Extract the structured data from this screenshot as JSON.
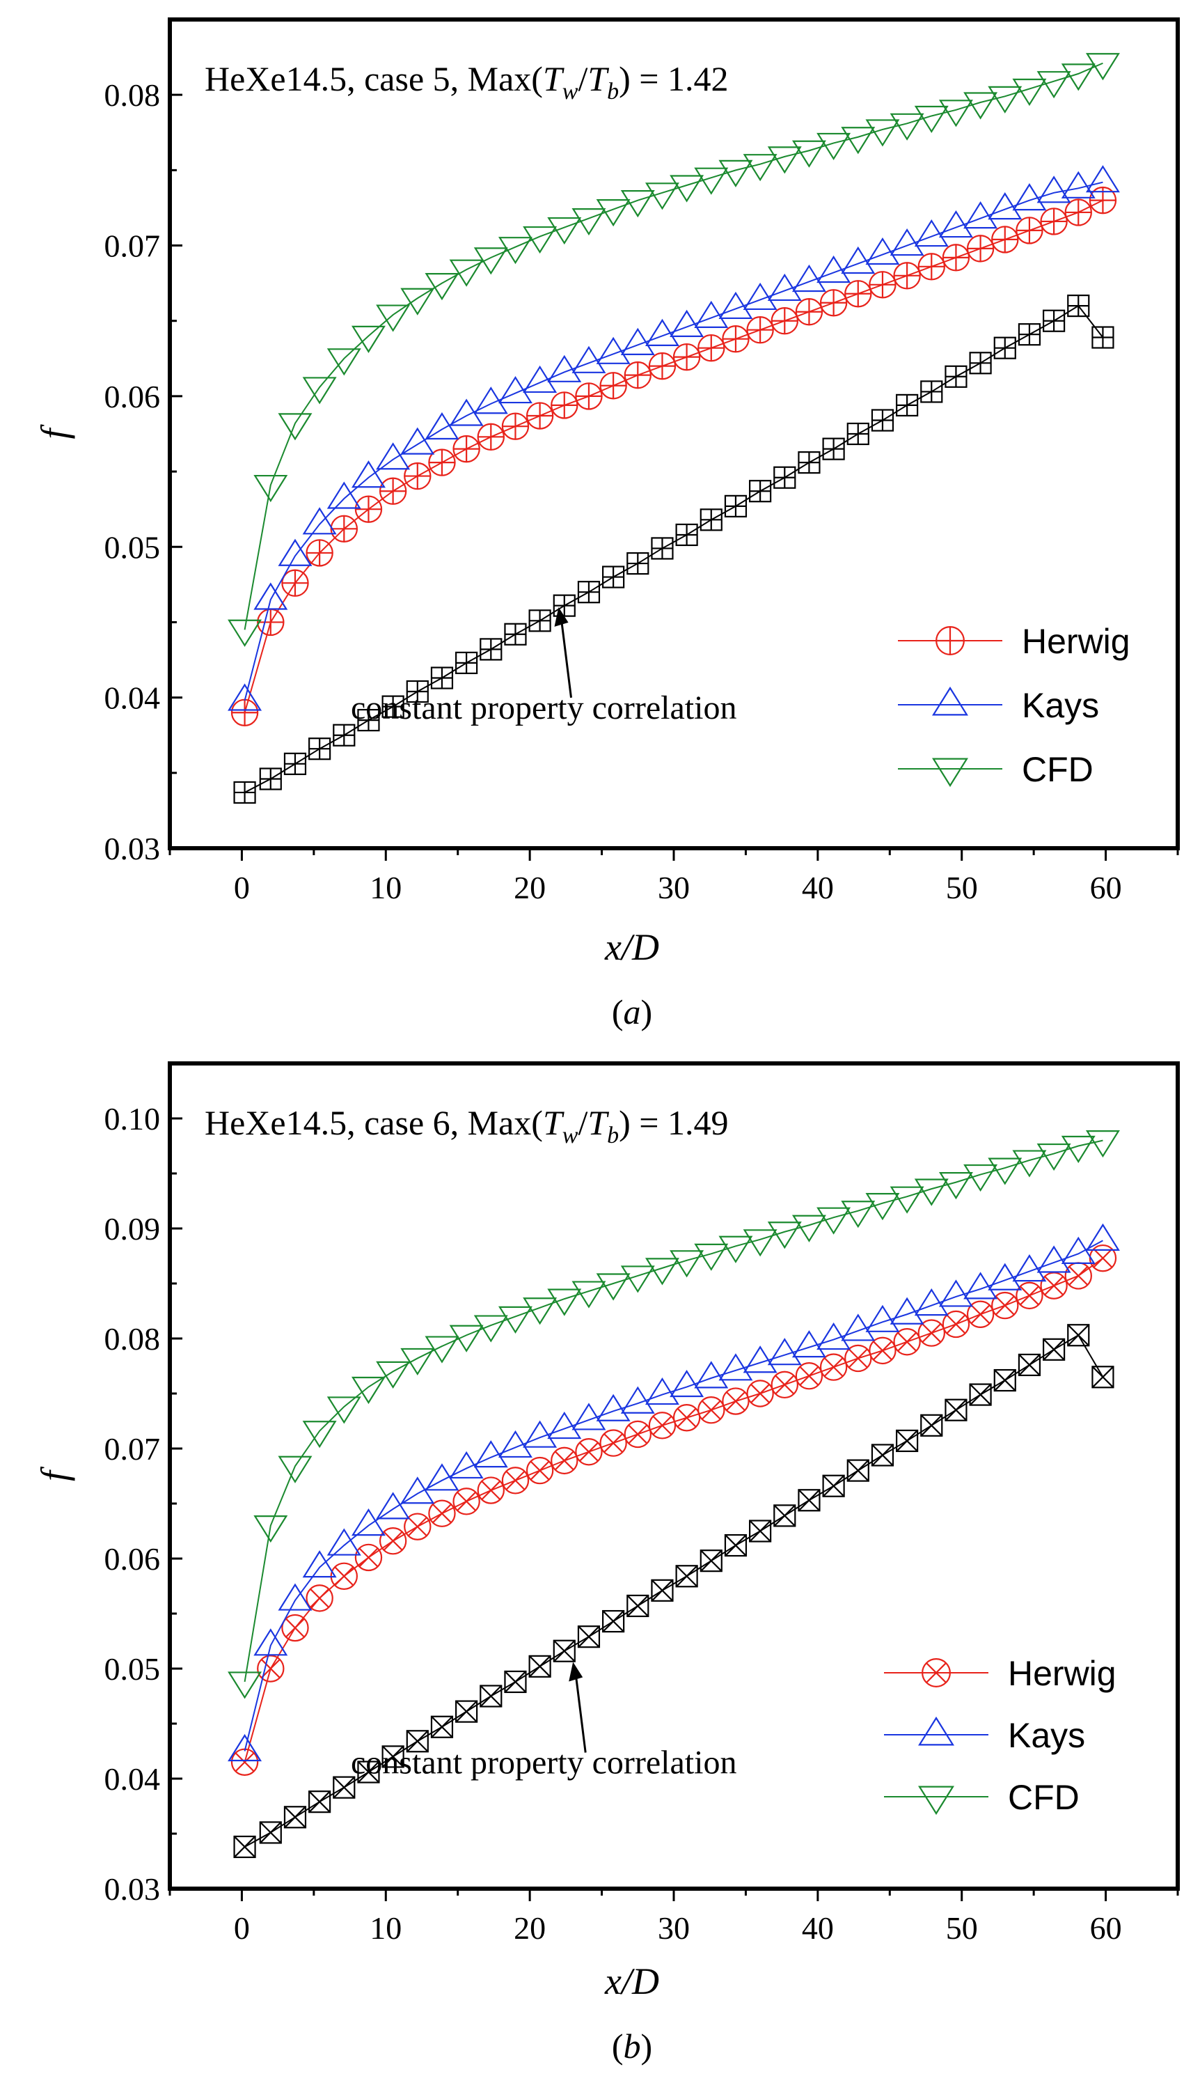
{
  "chart_data": [
    {
      "type": "line",
      "panel": "a",
      "caption": "a",
      "title": {
        "prefix": "HeXe14.5, case 5, Max(",
        "tw_t": "T",
        "tw_sub": "w",
        "slash": "/",
        "tb_t": "T",
        "tb_sub": "b",
        "suffix": ") = 1.42"
      },
      "xlabel": "x/D",
      "ylabel": "f",
      "xlim": [
        -5,
        65
      ],
      "ylim": [
        0.03,
        0.085
      ],
      "xticks": [
        0,
        10,
        20,
        30,
        40,
        50,
        60
      ],
      "yticks": [
        0.03,
        0.04,
        0.05,
        0.06,
        0.07,
        0.08
      ],
      "ytick_labels": [
        "0.03",
        "0.04",
        "0.05",
        "0.06",
        "0.07",
        "0.08"
      ],
      "legend_position": "bottom-right",
      "annotation": {
        "text": "constant property correlation",
        "arrow_target_x": 22,
        "arrow_target_y": 0.046
      },
      "x": [
        0.2,
        2,
        3.7,
        5.4,
        7.1,
        8.8,
        10.5,
        12.2,
        13.9,
        15.6,
        17.3,
        19,
        20.7,
        22.4,
        24.1,
        25.8,
        27.5,
        29.2,
        30.9,
        32.6,
        34.3,
        36,
        37.7,
        39.4,
        41.1,
        42.8,
        44.5,
        46.2,
        47.9,
        49.6,
        51.3,
        53,
        54.7,
        56.4,
        58.1,
        59.8
      ],
      "series": [
        {
          "name": "Herwig",
          "color": "#e8231b",
          "marker": "circle-plus",
          "legend": true,
          "values": [
            0.039,
            0.045,
            0.0476,
            0.0496,
            0.0512,
            0.0525,
            0.0537,
            0.0547,
            0.0556,
            0.0565,
            0.0573,
            0.058,
            0.0587,
            0.0594,
            0.06,
            0.0607,
            0.0614,
            0.062,
            0.0626,
            0.0632,
            0.0638,
            0.0644,
            0.065,
            0.0656,
            0.0662,
            0.0668,
            0.0674,
            0.068,
            0.0686,
            0.0692,
            0.0698,
            0.0704,
            0.071,
            0.0716,
            0.0722,
            0.073
          ]
        },
        {
          "name": "Kays",
          "color": "#1a36e0",
          "marker": "triangle-up",
          "legend": true,
          "values": [
            0.0398,
            0.0465,
            0.0494,
            0.0515,
            0.0532,
            0.0546,
            0.0558,
            0.0568,
            0.0578,
            0.0587,
            0.0595,
            0.0602,
            0.0609,
            0.0616,
            0.0622,
            0.0628,
            0.0634,
            0.064,
            0.0646,
            0.0652,
            0.0658,
            0.0664,
            0.067,
            0.0676,
            0.0682,
            0.0688,
            0.0694,
            0.07,
            0.0706,
            0.0712,
            0.0718,
            0.0724,
            0.073,
            0.0735,
            0.0738,
            0.0742
          ]
        },
        {
          "name": "CFD",
          "color": "#1b8a2f",
          "marker": "triangle-down",
          "legend": true,
          "values": [
            0.0445,
            0.0541,
            0.0582,
            0.0606,
            0.0625,
            0.064,
            0.0654,
            0.0665,
            0.0675,
            0.0684,
            0.0692,
            0.0699,
            0.0706,
            0.0712,
            0.0718,
            0.0724,
            0.073,
            0.0735,
            0.074,
            0.0745,
            0.075,
            0.0754,
            0.0759,
            0.0763,
            0.0768,
            0.0772,
            0.0777,
            0.0781,
            0.0786,
            0.079,
            0.0795,
            0.0799,
            0.0804,
            0.0809,
            0.0814,
            0.0821
          ]
        },
        {
          "name": "constant property correlation",
          "color": "#000000",
          "marker": "square-plus",
          "legend": false,
          "values": [
            0.0337,
            0.0346,
            0.0356,
            0.0366,
            0.0375,
            0.0385,
            0.0394,
            0.0404,
            0.0413,
            0.0423,
            0.0432,
            0.0442,
            0.0451,
            0.0461,
            0.047,
            0.048,
            0.0489,
            0.0499,
            0.0508,
            0.0518,
            0.0527,
            0.0537,
            0.0546,
            0.0556,
            0.0565,
            0.0575,
            0.0584,
            0.0594,
            0.0603,
            0.0613,
            0.0622,
            0.0632,
            0.0641,
            0.065,
            0.066,
            0.0639
          ]
        }
      ]
    },
    {
      "type": "line",
      "panel": "b",
      "caption": "b",
      "title": {
        "prefix": "HeXe14.5, case 6, Max(",
        "tw_t": "T",
        "tw_sub": "w",
        "slash": "/",
        "tb_t": "T",
        "tb_sub": "b",
        "suffix": ") = 1.49"
      },
      "xlabel": "x/D",
      "ylabel": "f",
      "xlim": [
        -5,
        65
      ],
      "ylim": [
        0.03,
        0.105
      ],
      "xticks": [
        0,
        10,
        20,
        30,
        40,
        50,
        60
      ],
      "yticks": [
        0.03,
        0.04,
        0.05,
        0.06,
        0.07,
        0.08,
        0.09,
        0.1
      ],
      "ytick_labels": [
        "0.03",
        "0.04",
        "0.05",
        "0.06",
        "0.07",
        "0.08",
        "0.09",
        "0.10"
      ],
      "legend_position": "bottom-right",
      "annotation": {
        "text": "constant property correlation",
        "arrow_target_x": 23,
        "arrow_target_y": 0.0506
      },
      "x": [
        0.2,
        2,
        3.7,
        5.4,
        7.1,
        8.8,
        10.5,
        12.2,
        13.9,
        15.6,
        17.3,
        19,
        20.7,
        22.4,
        24.1,
        25.8,
        27.5,
        29.2,
        30.9,
        32.6,
        34.3,
        36,
        37.7,
        39.4,
        41.1,
        42.8,
        44.5,
        46.2,
        47.9,
        49.6,
        51.3,
        53,
        54.7,
        56.4,
        58.1,
        59.8
      ],
      "series": [
        {
          "name": "Herwig",
          "color": "#e8231b",
          "marker": "circle-x",
          "legend": true,
          "values": [
            0.0415,
            0.05,
            0.0537,
            0.0564,
            0.0584,
            0.0601,
            0.0616,
            0.0629,
            0.0641,
            0.0652,
            0.0662,
            0.0671,
            0.068,
            0.0689,
            0.0697,
            0.0705,
            0.0713,
            0.0721,
            0.0728,
            0.0735,
            0.0743,
            0.075,
            0.0758,
            0.0766,
            0.0774,
            0.0782,
            0.0789,
            0.0797,
            0.0805,
            0.0813,
            0.0822,
            0.083,
            0.0839,
            0.0848,
            0.0857,
            0.0873
          ]
        },
        {
          "name": "Kays",
          "color": "#1a36e0",
          "marker": "triangle-up",
          "legend": true,
          "values": [
            0.0425,
            0.0521,
            0.0562,
            0.0592,
            0.0612,
            0.063,
            0.0645,
            0.0659,
            0.0671,
            0.0682,
            0.0692,
            0.0701,
            0.071,
            0.0718,
            0.0726,
            0.0734,
            0.0741,
            0.0749,
            0.0756,
            0.0764,
            0.0771,
            0.0778,
            0.0785,
            0.0792,
            0.0799,
            0.0807,
            0.0815,
            0.0822,
            0.083,
            0.0838,
            0.0845,
            0.0853,
            0.0861,
            0.0869,
            0.0877,
            0.0889
          ]
        },
        {
          "name": "CFD",
          "color": "#1b8a2f",
          "marker": "triangle-down",
          "legend": true,
          "values": [
            0.0488,
            0.063,
            0.0684,
            0.0716,
            0.0738,
            0.0756,
            0.077,
            0.0782,
            0.0793,
            0.0803,
            0.0812,
            0.082,
            0.0828,
            0.0836,
            0.0843,
            0.085,
            0.0857,
            0.0864,
            0.0871,
            0.0877,
            0.0884,
            0.089,
            0.0897,
            0.0903,
            0.091,
            0.0916,
            0.0923,
            0.0929,
            0.0936,
            0.0942,
            0.0949,
            0.0955,
            0.0962,
            0.0968,
            0.0975,
            0.098
          ]
        },
        {
          "name": "constant property correlation",
          "color": "#000000",
          "marker": "square-x",
          "legend": false,
          "values": [
            0.0338,
            0.0351,
            0.0365,
            0.0379,
            0.0392,
            0.0406,
            0.042,
            0.0434,
            0.0447,
            0.0461,
            0.0475,
            0.0488,
            0.0502,
            0.0516,
            0.0529,
            0.0543,
            0.0557,
            0.0571,
            0.0584,
            0.0598,
            0.0612,
            0.0625,
            0.0639,
            0.0653,
            0.0666,
            0.068,
            0.0694,
            0.0707,
            0.0721,
            0.0735,
            0.0749,
            0.0762,
            0.0776,
            0.079,
            0.0803,
            0.0765
          ]
        }
      ]
    }
  ]
}
